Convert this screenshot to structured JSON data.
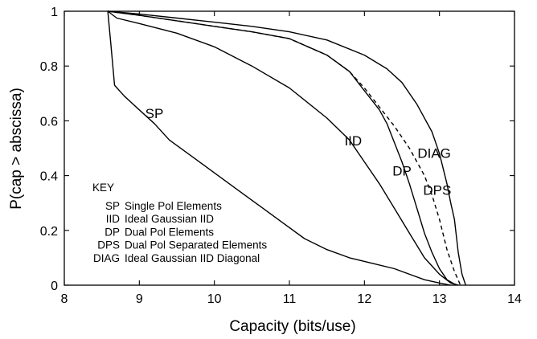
{
  "chart_data": {
    "type": "line",
    "xlabel": "Capacity (bits/use)",
    "ylabel": "P(cap > abscissa)",
    "xlim": [
      8,
      14
    ],
    "ylim": [
      0,
      1
    ],
    "x_ticks": [
      "8",
      "9",
      "10",
      "11",
      "12",
      "13",
      "14"
    ],
    "y_ticks": [
      "0",
      "0.2",
      "0.4",
      "0.6",
      "0.8",
      "1"
    ],
    "key": {
      "title": "KEY",
      "entries": [
        {
          "abbr": "SP",
          "desc": "Single Pol Elements"
        },
        {
          "abbr": "IID",
          "desc": "Ideal Gaussian IID"
        },
        {
          "abbr": "DP",
          "desc": "Dual Pol Elements"
        },
        {
          "abbr": "DPS",
          "desc": "Dual Pol Separated Elements"
        },
        {
          "abbr": "DIAG",
          "desc": "Ideal Gaussian IID Diagonal"
        }
      ]
    },
    "series": [
      {
        "name": "SP",
        "style": "solid",
        "points": [
          [
            8.58,
            1.0
          ],
          [
            8.62,
            0.88
          ],
          [
            8.67,
            0.73
          ],
          [
            8.8,
            0.69
          ],
          [
            9.0,
            0.64
          ],
          [
            9.2,
            0.59
          ],
          [
            9.4,
            0.53
          ],
          [
            9.7,
            0.47
          ],
          [
            10.0,
            0.41
          ],
          [
            10.3,
            0.35
          ],
          [
            10.6,
            0.29
          ],
          [
            10.9,
            0.23
          ],
          [
            11.2,
            0.17
          ],
          [
            11.5,
            0.13
          ],
          [
            11.8,
            0.1
          ],
          [
            12.1,
            0.08
          ],
          [
            12.4,
            0.06
          ],
          [
            12.6,
            0.04
          ],
          [
            12.8,
            0.02
          ],
          [
            13.0,
            0.008
          ],
          [
            13.15,
            0.0
          ]
        ]
      },
      {
        "name": "IID",
        "style": "solid",
        "points": [
          [
            8.58,
            1.0
          ],
          [
            8.7,
            0.975
          ],
          [
            9.0,
            0.955
          ],
          [
            9.5,
            0.92
          ],
          [
            10.0,
            0.87
          ],
          [
            10.5,
            0.8
          ],
          [
            11.0,
            0.72
          ],
          [
            11.5,
            0.61
          ],
          [
            11.8,
            0.53
          ],
          [
            12.0,
            0.45
          ],
          [
            12.2,
            0.37
          ],
          [
            12.4,
            0.28
          ],
          [
            12.6,
            0.19
          ],
          [
            12.8,
            0.1
          ],
          [
            13.0,
            0.04
          ],
          [
            13.15,
            0.008
          ],
          [
            13.25,
            0.0
          ]
        ]
      },
      {
        "name": "DP",
        "style": "solid",
        "points": [
          [
            8.58,
            1.0
          ],
          [
            9.0,
            0.985
          ],
          [
            9.5,
            0.965
          ],
          [
            10.0,
            0.945
          ],
          [
            10.5,
            0.925
          ],
          [
            11.0,
            0.9
          ],
          [
            11.5,
            0.84
          ],
          [
            11.8,
            0.78
          ],
          [
            12.0,
            0.71
          ],
          [
            12.2,
            0.64
          ],
          [
            12.3,
            0.59
          ],
          [
            12.4,
            0.52
          ],
          [
            12.5,
            0.45
          ],
          [
            12.6,
            0.37
          ],
          [
            12.7,
            0.28
          ],
          [
            12.8,
            0.19
          ],
          [
            12.9,
            0.12
          ],
          [
            13.0,
            0.06
          ],
          [
            13.1,
            0.02
          ],
          [
            13.2,
            0.004
          ],
          [
            13.25,
            0.0
          ]
        ]
      },
      {
        "name": "DPS",
        "style": "dashed",
        "points": [
          [
            8.58,
            1.0
          ],
          [
            9.0,
            0.985
          ],
          [
            9.5,
            0.965
          ],
          [
            10.0,
            0.945
          ],
          [
            10.5,
            0.925
          ],
          [
            11.0,
            0.9
          ],
          [
            11.5,
            0.84
          ],
          [
            11.8,
            0.78
          ],
          [
            12.0,
            0.72
          ],
          [
            12.2,
            0.65
          ],
          [
            12.4,
            0.58
          ],
          [
            12.6,
            0.5
          ],
          [
            12.8,
            0.4
          ],
          [
            12.9,
            0.33
          ],
          [
            13.0,
            0.24
          ],
          [
            13.1,
            0.13
          ],
          [
            13.2,
            0.05
          ],
          [
            13.28,
            0.0
          ]
        ]
      },
      {
        "name": "DIAG",
        "style": "solid",
        "points": [
          [
            8.58,
            1.0
          ],
          [
            9.0,
            0.99
          ],
          [
            9.5,
            0.975
          ],
          [
            10.0,
            0.96
          ],
          [
            10.5,
            0.945
          ],
          [
            11.0,
            0.925
          ],
          [
            11.5,
            0.895
          ],
          [
            12.0,
            0.84
          ],
          [
            12.3,
            0.79
          ],
          [
            12.5,
            0.74
          ],
          [
            12.7,
            0.66
          ],
          [
            12.9,
            0.56
          ],
          [
            13.0,
            0.48
          ],
          [
            13.1,
            0.37
          ],
          [
            13.15,
            0.3
          ],
          [
            13.2,
            0.24
          ],
          [
            13.25,
            0.12
          ],
          [
            13.3,
            0.04
          ],
          [
            13.35,
            0.0
          ]
        ]
      }
    ],
    "curve_labels": [
      {
        "text": "SP",
        "x": 9.2,
        "y": 0.61
      },
      {
        "text": "IID",
        "x": 11.85,
        "y": 0.51
      },
      {
        "text": "DP",
        "x": 12.5,
        "y": 0.4
      },
      {
        "text": "DPS",
        "x": 12.97,
        "y": 0.33
      },
      {
        "text": "DIAG",
        "x": 12.93,
        "y": 0.465
      }
    ]
  }
}
